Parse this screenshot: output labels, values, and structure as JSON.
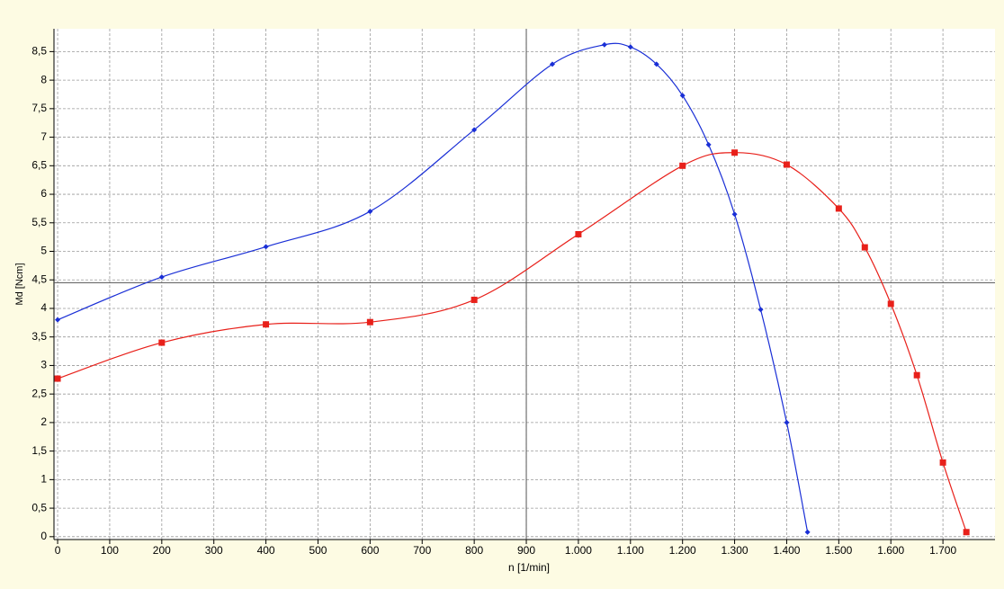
{
  "chart_data": {
    "type": "line",
    "xlabel": "n [1/min]",
    "ylabel": "Md [Ncm]",
    "xlim": [
      -7,
      1800
    ],
    "ylim": [
      -0.05,
      8.9
    ],
    "xticks": [
      0,
      100,
      200,
      300,
      400,
      500,
      600,
      700,
      800,
      900,
      {
        "value": 1000,
        "label": "1.000"
      },
      {
        "value": 1100,
        "label": "1.100"
      },
      {
        "value": 1200,
        "label": "1.200"
      },
      {
        "value": 1300,
        "label": "1.300"
      },
      {
        "value": 1400,
        "label": "1.400"
      },
      {
        "value": 1500,
        "label": "1.500"
      },
      {
        "value": 1600,
        "label": "1.600"
      },
      {
        "value": 1700,
        "label": "1.700"
      }
    ],
    "yticks": [
      0,
      {
        "value": 0.5,
        "label": "0,5"
      },
      1,
      {
        "value": 1.5,
        "label": "1,5"
      },
      2,
      {
        "value": 2.5,
        "label": "2,5"
      },
      3,
      {
        "value": 3.5,
        "label": "3,5"
      },
      4,
      {
        "value": 4.5,
        "label": "4,5"
      },
      5,
      {
        "value": 5.5,
        "label": "5,5"
      },
      6,
      {
        "value": 6.5,
        "label": "6,5"
      },
      7,
      {
        "value": 7.5,
        "label": "7,5"
      },
      8,
      {
        "value": 8.5,
        "label": "8,5"
      }
    ],
    "grid": true,
    "crosshair": {
      "x": 900,
      "y": 4.45
    },
    "series": [
      {
        "color": "#1a2fd6",
        "marker": "diamond",
        "x": [
          0,
          200,
          400,
          600,
          800,
          950,
          1050,
          1100,
          1150,
          1200,
          1250,
          1300,
          1350,
          1400,
          1440
        ],
        "values": [
          3.8,
          4.55,
          5.08,
          5.7,
          7.13,
          8.28,
          8.62,
          8.58,
          8.28,
          7.73,
          6.87,
          5.65,
          3.98,
          2.0,
          0.08
        ]
      },
      {
        "color": "#e8201a",
        "marker": "square",
        "x": [
          0,
          200,
          400,
          600,
          800,
          1000,
          1200,
          1300,
          1400,
          1500,
          1550,
          1600,
          1650,
          1700,
          1745
        ],
        "values": [
          2.77,
          3.4,
          3.72,
          3.76,
          4.15,
          5.3,
          6.5,
          6.73,
          6.52,
          5.75,
          5.07,
          4.08,
          2.83,
          1.3,
          0.08
        ]
      }
    ]
  }
}
